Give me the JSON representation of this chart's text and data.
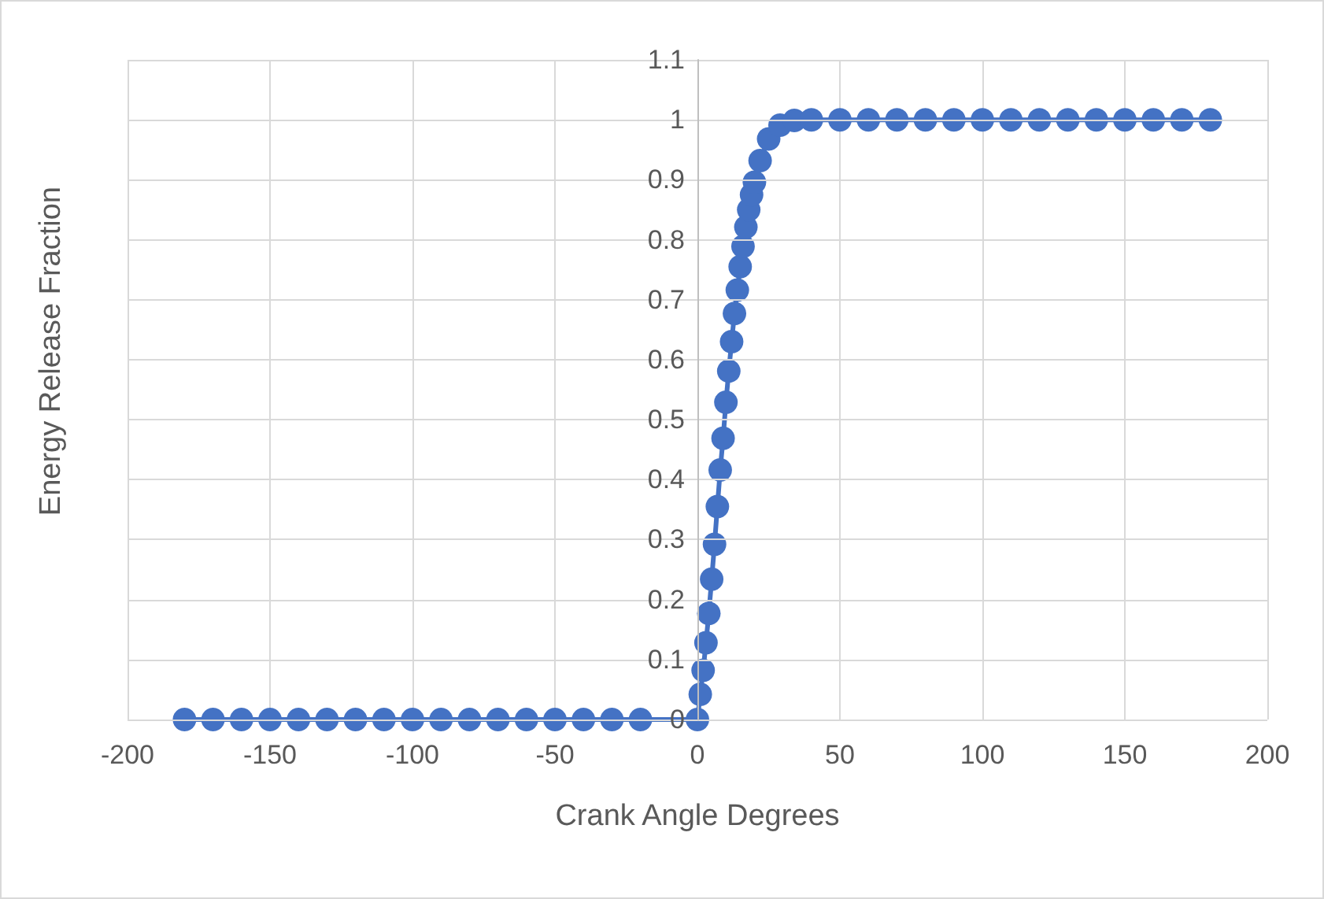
{
  "chart_data": {
    "type": "line",
    "xlabel": "Crank Angle Degrees",
    "ylabel": "Energy Release Fraction",
    "xlim": [
      -200,
      200
    ],
    "xticks": [
      -200,
      -150,
      -100,
      -50,
      0,
      50,
      100,
      150,
      200
    ],
    "ylim": [
      0,
      1.1
    ],
    "yticks": [
      0,
      0.1,
      0.2,
      0.3,
      0.4,
      0.5,
      0.6,
      0.7,
      0.8,
      0.9,
      1,
      1.1
    ],
    "grid": true,
    "marker": "circle",
    "line_style": "solid",
    "series": [
      {
        "color": "#4472c4",
        "x": [
          -180,
          -170,
          -160,
          -150,
          -140,
          -130,
          -120,
          -110,
          -100,
          -90,
          -80,
          -70,
          -60,
          -50,
          -40,
          -30,
          -20,
          0,
          1,
          2,
          3,
          4,
          5,
          6,
          7,
          8,
          9,
          10,
          11,
          12,
          13,
          14,
          15,
          16,
          17,
          18,
          19,
          20,
          22,
          25,
          29,
          34,
          40,
          50,
          60,
          70,
          80,
          90,
          100,
          110,
          120,
          130,
          140,
          150,
          160,
          170,
          180
        ],
        "values": [
          0,
          0,
          0,
          0,
          0,
          0,
          0,
          0,
          0,
          0,
          0,
          0,
          0,
          0,
          0,
          0,
          0,
          0,
          0.042,
          0.082,
          0.128,
          0.177,
          0.234,
          0.292,
          0.355,
          0.416,
          0.469,
          0.529,
          0.581,
          0.63,
          0.677,
          0.716,
          0.755,
          0.789,
          0.821,
          0.85,
          0.875,
          0.896,
          0.932,
          0.968,
          0.991,
          0.999,
          1,
          1,
          1,
          1,
          1,
          1,
          1,
          1,
          1,
          1,
          1,
          1,
          1,
          1,
          1
        ]
      }
    ]
  }
}
